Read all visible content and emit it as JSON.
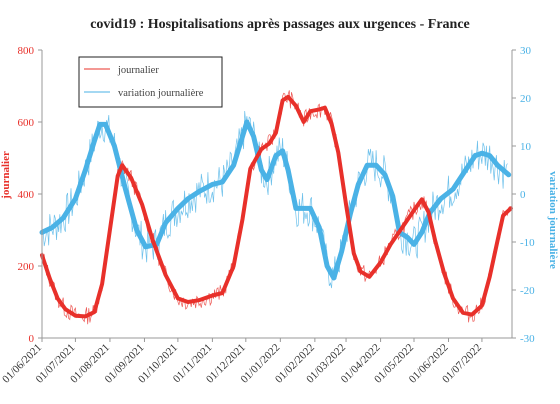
{
  "chart_data": {
    "type": "line",
    "title": "covid19 : Hospitalisations après passages aux urgences - France",
    "x_tick_labels": [
      "01/06/2021",
      "01/07/2021",
      "01/08/2021",
      "01/09/2021",
      "01/10/2021",
      "01/11/2021",
      "01/12/2021",
      "01/01/2022",
      "01/02/2022",
      "01/03/2022",
      "01/04/2022",
      "01/05/2022",
      "01/06/2022",
      "01/07/2022"
    ],
    "x_range": [
      "2021-06-01",
      "2022-07-28"
    ],
    "y_left": {
      "label": "journalier",
      "ylim": [
        0,
        800
      ],
      "ticks": [
        "0",
        "200",
        "400",
        "600",
        "800"
      ]
    },
    "y_right": {
      "label": "variation journalière",
      "ylim": [
        -30,
        30
      ],
      "ticks": [
        "-30",
        "-20",
        "-10",
        "0",
        "10",
        "20",
        "30"
      ]
    },
    "legend": {
      "position": "top-left",
      "entries": [
        "journalier",
        "variation journalière"
      ]
    },
    "grid": false,
    "series": [
      {
        "name": "journalier",
        "axis": "left",
        "color": "#e8302a",
        "points": [
          [
            "2021-06-01",
            230
          ],
          [
            "2021-06-08",
            165
          ],
          [
            "2021-06-15",
            110
          ],
          [
            "2021-06-22",
            80
          ],
          [
            "2021-07-01",
            62
          ],
          [
            "2021-07-10",
            60
          ],
          [
            "2021-07-18",
            72
          ],
          [
            "2021-07-25",
            150
          ],
          [
            "2021-08-01",
            300
          ],
          [
            "2021-08-08",
            450
          ],
          [
            "2021-08-12",
            480
          ],
          [
            "2021-08-20",
            445
          ],
          [
            "2021-08-30",
            370
          ],
          [
            "2021-09-08",
            275
          ],
          [
            "2021-09-20",
            175
          ],
          [
            "2021-10-01",
            110
          ],
          [
            "2021-10-10",
            100
          ],
          [
            "2021-10-20",
            105
          ],
          [
            "2021-11-01",
            118
          ],
          [
            "2021-11-10",
            125
          ],
          [
            "2021-11-20",
            200
          ],
          [
            "2021-11-28",
            330
          ],
          [
            "2021-12-05",
            470
          ],
          [
            "2021-12-15",
            525
          ],
          [
            "2021-12-22",
            540
          ],
          [
            "2021-12-28",
            570
          ],
          [
            "2022-01-03",
            660
          ],
          [
            "2022-01-08",
            670
          ],
          [
            "2022-01-15",
            645
          ],
          [
            "2022-01-22",
            600
          ],
          [
            "2022-01-28",
            630
          ],
          [
            "2022-02-05",
            635
          ],
          [
            "2022-02-10",
            640
          ],
          [
            "2022-02-16",
            595
          ],
          [
            "2022-02-22",
            515
          ],
          [
            "2022-03-01",
            370
          ],
          [
            "2022-03-08",
            235
          ],
          [
            "2022-03-14",
            185
          ],
          [
            "2022-03-22",
            170
          ],
          [
            "2022-04-01",
            210
          ],
          [
            "2022-04-10",
            260
          ],
          [
            "2022-04-20",
            305
          ],
          [
            "2022-05-01",
            355
          ],
          [
            "2022-05-08",
            385
          ],
          [
            "2022-05-14",
            350
          ],
          [
            "2022-05-20",
            270
          ],
          [
            "2022-05-28",
            180
          ],
          [
            "2022-06-05",
            110
          ],
          [
            "2022-06-14",
            70
          ],
          [
            "2022-06-22",
            65
          ],
          [
            "2022-07-01",
            90
          ],
          [
            "2022-07-08",
            170
          ],
          [
            "2022-07-15",
            270
          ],
          [
            "2022-07-20",
            340
          ],
          [
            "2022-07-27",
            360
          ]
        ]
      },
      {
        "name": "variation journalière",
        "axis": "right",
        "color": "#4ab2e6",
        "points": [
          [
            "2021-06-01",
            -8
          ],
          [
            "2021-06-10",
            -7
          ],
          [
            "2021-06-20",
            -5
          ],
          [
            "2021-07-01",
            -1
          ],
          [
            "2021-07-10",
            5
          ],
          [
            "2021-07-18",
            11
          ],
          [
            "2021-07-23",
            14.5
          ],
          [
            "2021-07-28",
            14.5
          ],
          [
            "2021-08-05",
            10
          ],
          [
            "2021-08-15",
            1
          ],
          [
            "2021-08-25",
            -7.5
          ],
          [
            "2021-09-02",
            -11
          ],
          [
            "2021-09-12",
            -10.5
          ],
          [
            "2021-09-20",
            -6
          ],
          [
            "2021-10-01",
            -3
          ],
          [
            "2021-10-10",
            -1
          ],
          [
            "2021-10-20",
            0.5
          ],
          [
            "2021-11-01",
            2
          ],
          [
            "2021-11-10",
            2.5
          ],
          [
            "2021-11-20",
            6
          ],
          [
            "2021-11-28",
            12
          ],
          [
            "2021-12-02",
            15
          ],
          [
            "2021-12-08",
            12
          ],
          [
            "2021-12-15",
            5
          ],
          [
            "2021-12-20",
            3
          ],
          [
            "2021-12-28",
            8
          ],
          [
            "2022-01-03",
            9
          ],
          [
            "2022-01-08",
            5
          ],
          [
            "2022-01-15",
            -3
          ],
          [
            "2022-01-22",
            -3
          ],
          [
            "2022-01-28",
            -3
          ],
          [
            "2022-02-05",
            -7
          ],
          [
            "2022-02-12",
            -15
          ],
          [
            "2022-02-18",
            -17.5
          ],
          [
            "2022-02-25",
            -12
          ],
          [
            "2022-03-05",
            -4
          ],
          [
            "2022-03-12",
            2
          ],
          [
            "2022-03-20",
            6
          ],
          [
            "2022-03-28",
            6
          ],
          [
            "2022-04-05",
            4
          ],
          [
            "2022-04-12",
            -0.5
          ],
          [
            "2022-04-18",
            -8
          ],
          [
            "2022-04-25",
            -9
          ],
          [
            "2022-05-01",
            -10.5
          ],
          [
            "2022-05-08",
            -8
          ],
          [
            "2022-05-15",
            -4
          ],
          [
            "2022-05-25",
            -1
          ],
          [
            "2022-06-05",
            1
          ],
          [
            "2022-06-15",
            4.5
          ],
          [
            "2022-06-25",
            8
          ],
          [
            "2022-07-01",
            8.5
          ],
          [
            "2022-07-08",
            8
          ],
          [
            "2022-07-15",
            6
          ],
          [
            "2022-07-20",
            5
          ],
          [
            "2022-07-25",
            4
          ]
        ]
      }
    ]
  }
}
